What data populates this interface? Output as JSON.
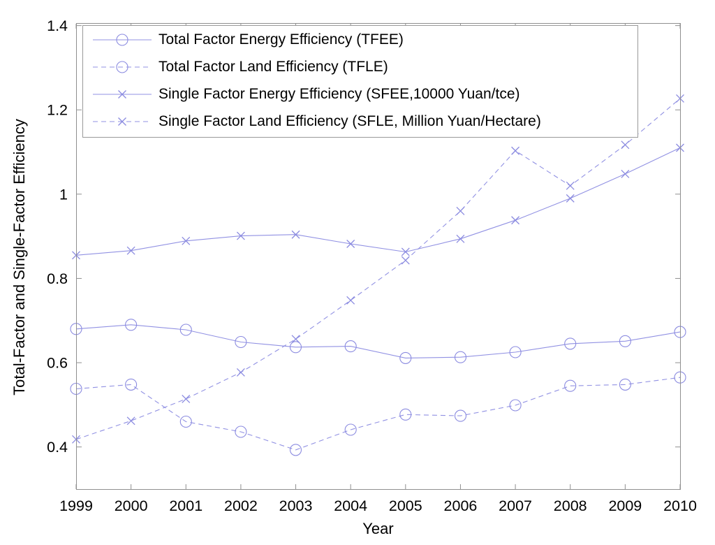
{
  "figure": {
    "background": "#ffffff"
  },
  "chart_data": {
    "type": "line",
    "title": "",
    "xlabel": "Year",
    "ylabel": "Total-Factor and Single-Factor Efficiency",
    "x": [
      1999,
      2000,
      2001,
      2002,
      2003,
      2004,
      2005,
      2006,
      2007,
      2008,
      2009,
      2010
    ],
    "xtick_labels": [
      "1999",
      "2000",
      "2001",
      "2002",
      "2003",
      "2004",
      "2005",
      "2006",
      "2007",
      "2008",
      "2009",
      "2010"
    ],
    "xlim": [
      1999,
      2010
    ],
    "yticks": [
      0.4,
      0.6,
      0.8,
      1.0,
      1.2,
      1.4
    ],
    "ytick_labels": [
      "0.4",
      "0.6",
      "0.8",
      "1",
      "1.2",
      "1.4"
    ],
    "ylim": [
      0.3,
      1.406
    ],
    "grid": false,
    "legend_position": "top-left-inside",
    "series": [
      {
        "id": "tfee",
        "name": "Total Factor Energy Efficiency (TFEE)",
        "line": "solid",
        "marker": "circle",
        "values": [
          0.68,
          0.69,
          0.678,
          0.649,
          0.637,
          0.639,
          0.611,
          0.613,
          0.625,
          0.645,
          0.651,
          0.673
        ]
      },
      {
        "id": "tfle",
        "name": "Total Factor Land Efficiency (TFLE)",
        "line": "dashed",
        "marker": "circle",
        "values": [
          0.538,
          0.548,
          0.46,
          0.436,
          0.393,
          0.441,
          0.477,
          0.474,
          0.499,
          0.545,
          0.548,
          0.565
        ]
      },
      {
        "id": "sfee",
        "name": "Single Factor Energy Efficiency (SFEE,10000 Yuan/tce)",
        "line": "solid",
        "marker": "x",
        "values": [
          0.855,
          0.866,
          0.889,
          0.901,
          0.904,
          0.882,
          0.863,
          0.894,
          0.938,
          0.99,
          1.048,
          1.11
        ]
      },
      {
        "id": "sfle",
        "name": "Single Factor Land Efficiency (SFLE, Million Yuan/Hectare)",
        "line": "dashed",
        "marker": "x",
        "values": [
          0.418,
          0.462,
          0.514,
          0.577,
          0.656,
          0.748,
          0.843,
          0.96,
          1.103,
          1.02,
          1.117,
          1.227
        ]
      }
    ],
    "colors": {
      "line": "#9191e3",
      "marker": "#8b8be0",
      "axis": "#8f8f8f",
      "text": "#000000",
      "legend_border": "#999999",
      "legend_bg": "#ffffff"
    }
  }
}
